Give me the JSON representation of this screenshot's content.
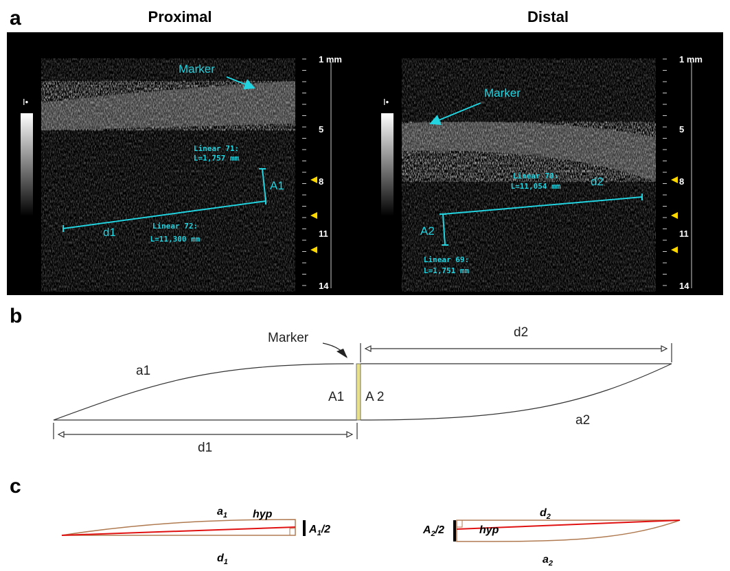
{
  "panel_a": {
    "label": "a",
    "proximal": {
      "title": "Proximal",
      "marker": "Marker",
      "measure_a": {
        "name": "Linear 71:",
        "length": "L=1,757 mm",
        "tag": "A1"
      },
      "measure_d": {
        "name": "Linear 72:",
        "length": "L=11,300 mm",
        "tag": "d1"
      },
      "scale": [
        "1 mm",
        "5",
        "8",
        "11",
        "14"
      ]
    },
    "distal": {
      "title": "Distal",
      "marker": "Marker",
      "measure_d": {
        "name": "Linear 70:",
        "length": "L=11,054 mm",
        "tag": "d2"
      },
      "measure_a": {
        "name": "Linear 69:",
        "length": "L=1,751 mm",
        "tag": "A2"
      },
      "scale": [
        "1 mm",
        "5",
        "8",
        "11",
        "14"
      ]
    }
  },
  "panel_b": {
    "label": "b",
    "marker": "Marker",
    "a1": "a1",
    "d2": "d2",
    "A1": "A1",
    "A2": "A 2",
    "d1": "d1",
    "a2": "a2"
  },
  "panel_c": {
    "label": "c",
    "left": {
      "a": {
        "base": "a",
        "sub": "1"
      },
      "hyp": "hyp",
      "half": {
        "base": "A",
        "sub": "1",
        "rest": "/2"
      },
      "d": {
        "base": "d",
        "sub": "1"
      }
    },
    "right": {
      "d": {
        "base": "d",
        "sub": "2"
      },
      "hyp": "hyp",
      "half": {
        "base": "A",
        "sub": "2",
        "rest": "/2"
      },
      "a": {
        "base": "a",
        "sub": "2"
      }
    }
  }
}
